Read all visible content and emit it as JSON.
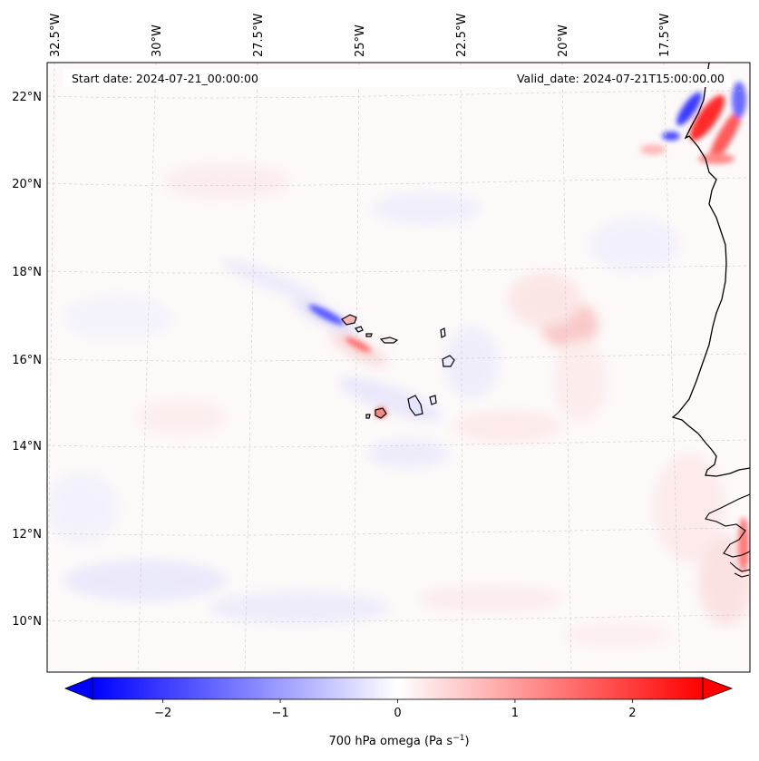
{
  "map": {
    "header": {
      "start_date": "Start date: 2024-07-21_00:00:00",
      "valid_date": "Valid_date: 2024-07-21T15:00:00.00"
    },
    "longitude_labels": [
      "32.5°W",
      "30°W",
      "27.5°W",
      "25°W",
      "22.5°W",
      "20°W",
      "17.5°W"
    ],
    "latitude_labels": [
      "22°N",
      "20°N",
      "18°N",
      "16°N",
      "14°N",
      "12°N",
      "10°N"
    ],
    "variable": "700 hPa omega",
    "units": "Pa s",
    "units_exponent": "−1",
    "region": "Cape Verde Islands / West African coast"
  },
  "colorbar": {
    "ticks": [
      "−2",
      "−1",
      "0",
      "1",
      "2"
    ],
    "tick_values": [
      -2,
      -1,
      0,
      1,
      2
    ],
    "range": [
      -2.6,
      2.6
    ],
    "extend": "both",
    "colors": {
      "min": "#0000ff",
      "mid": "#ffffff",
      "max": "#ff0000"
    }
  }
}
